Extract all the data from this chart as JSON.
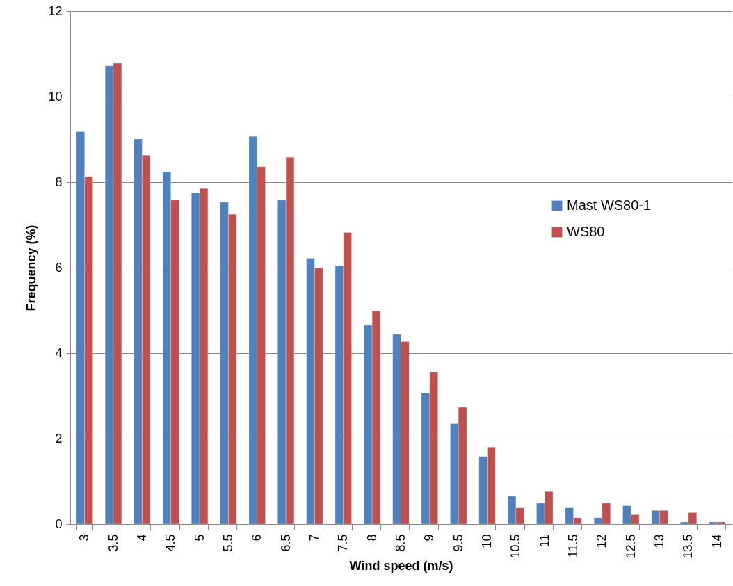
{
  "chart_data": {
    "type": "bar",
    "xlabel": "Wind speed (m/s)",
    "ylabel": "Frequency (%)",
    "categories": [
      "3",
      "3.5",
      "4",
      "4.5",
      "5",
      "5.5",
      "6",
      "6.5",
      "7",
      "7.5",
      "8",
      "8.5",
      "9",
      "9.5",
      "10",
      "10.5",
      "11",
      "11.5",
      "12",
      "12.5",
      "13",
      "13.5",
      "14"
    ],
    "series": [
      {
        "name": "Mast WS80-1",
        "color": "#4f81bd",
        "values": [
          9.18,
          10.72,
          9.01,
          8.24,
          7.75,
          7.53,
          9.07,
          7.58,
          6.22,
          6.05,
          4.65,
          4.44,
          3.07,
          2.35,
          1.58,
          0.65,
          0.49,
          0.38,
          0.15,
          0.43,
          0.32,
          0.05,
          0.05
        ]
      },
      {
        "name": "WS80",
        "color": "#c0504d",
        "values": [
          8.13,
          10.78,
          8.63,
          7.58,
          7.85,
          7.25,
          8.36,
          8.58,
          5.99,
          6.82,
          4.98,
          4.27,
          3.56,
          2.73,
          1.8,
          0.38,
          0.76,
          0.15,
          0.49,
          0.22,
          0.32,
          0.27,
          0.05
        ]
      }
    ],
    "ylim": [
      0,
      12
    ],
    "yticks": [
      0,
      2,
      4,
      6,
      8,
      10,
      12
    ],
    "grid": "y",
    "legend": "right"
  }
}
